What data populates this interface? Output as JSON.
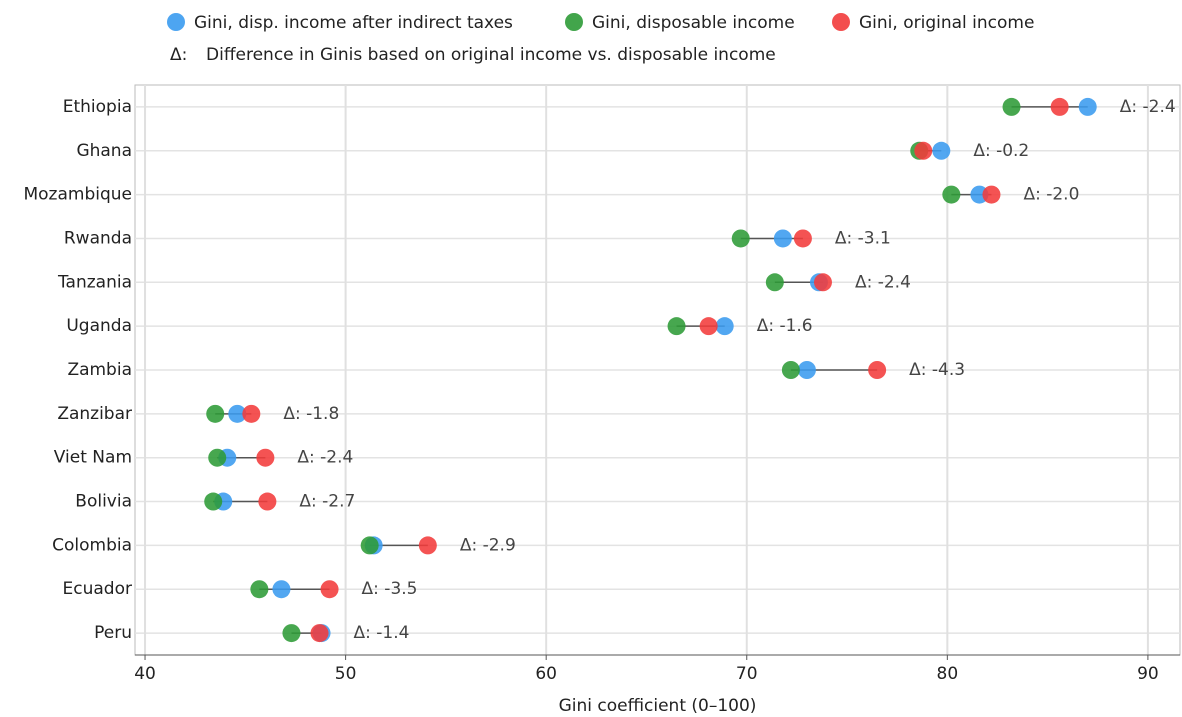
{
  "chart_data": {
    "type": "dumbbell",
    "x_label": "Gini coefficient (0–100)",
    "categories": [
      "Ethiopia",
      "Ghana",
      "Mozambique",
      "Rwanda",
      "Tanzania",
      "Uganda",
      "Zambia",
      "Zanzibar",
      "Viet Nam",
      "Bolivia",
      "Colombia",
      "Ecuador",
      "Peru"
    ],
    "series": [
      {
        "name": "Gini, disp. income after indirect taxes",
        "color": "#3a9bef",
        "values": [
          87.0,
          79.7,
          81.6,
          71.8,
          73.6,
          68.9,
          73.0,
          44.6,
          44.1,
          43.9,
          51.4,
          46.8,
          48.8
        ]
      },
      {
        "name": "Gini, disposable income",
        "color": "#2e9b37",
        "values": [
          83.2,
          78.6,
          80.2,
          69.7,
          71.4,
          66.5,
          72.2,
          43.5,
          43.6,
          43.4,
          51.2,
          45.7,
          47.3
        ]
      },
      {
        "name": "Gini, original income",
        "color": "#f23b3b",
        "values": [
          85.6,
          78.8,
          82.2,
          72.8,
          73.8,
          68.1,
          76.5,
          45.3,
          46.0,
          46.1,
          54.1,
          49.2,
          48.7
        ]
      }
    ],
    "delta_symbol": "Δ:",
    "delta_note": "Difference in Ginis based on original income vs. disposable income",
    "delta_labels": [
      "Δ: -2.4",
      "Δ: -0.2",
      "Δ: -2.0",
      "Δ: -3.1",
      "Δ: -2.4",
      "Δ: -1.6",
      "Δ: -4.3",
      "Δ: -1.8",
      "Δ: -2.4",
      "Δ: -2.7",
      "Δ: -2.9",
      "Δ: -3.5",
      "Δ: -1.4"
    ],
    "xlim": [
      39.5,
      91.6
    ],
    "xticks": [
      40,
      50,
      60,
      70,
      80,
      90
    ],
    "grid": true
  }
}
